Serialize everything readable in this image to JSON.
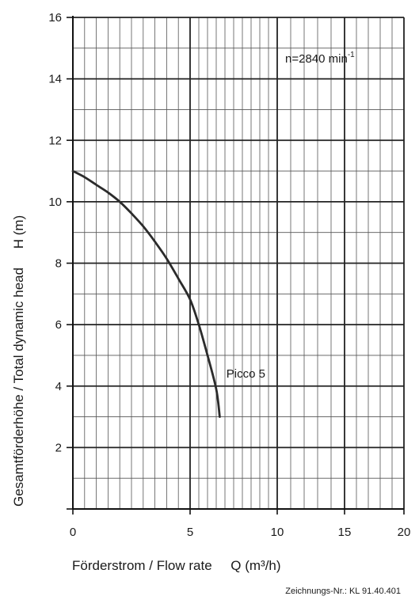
{
  "chart_data": {
    "type": "line",
    "xlabel": "Förderstrom / Flow rate     Q (m³/h)",
    "ylabel": "Gesamtförderhöhe / Total dynamic head     H (m)",
    "xlim": [
      0,
      20
    ],
    "ylim": [
      0,
      16
    ],
    "x_scale": "piecewise-linear",
    "x_breakpoints": [
      0,
      5,
      10,
      20
    ],
    "x_ticks": [
      0,
      5,
      10,
      15,
      20
    ],
    "y_ticks": [
      2,
      4,
      6,
      8,
      10,
      12,
      14,
      16
    ],
    "x_tick_labels": [
      "0",
      "5",
      "10",
      "15",
      "20"
    ],
    "y_tick_labels": [
      "2",
      "4",
      "6",
      "8",
      "10",
      "12",
      "14",
      "16"
    ],
    "x_minor_ticks": [
      0.5,
      1,
      1.5,
      2,
      2.5,
      3,
      3.5,
      4,
      4.5,
      5.5,
      6,
      6.5,
      7,
      7.5,
      8,
      8.5,
      9,
      9.5,
      11,
      12,
      13,
      14,
      15,
      16,
      17,
      18,
      19
    ],
    "y_minor_ticks": [
      1,
      2,
      3,
      4,
      5,
      6,
      7,
      8,
      9,
      10,
      11,
      12,
      13,
      14,
      15
    ],
    "grid": true,
    "annotation_speed": {
      "main": "n=2840 min",
      "superscript": "-1"
    },
    "series": [
      {
        "name": "Picco 5",
        "x": [
          0,
          0.5,
          1,
          1.5,
          2,
          2.5,
          3,
          3.5,
          4,
          4.5,
          5,
          5.5,
          6,
          6.5,
          6.7
        ],
        "y": [
          11.0,
          10.8,
          10.55,
          10.3,
          10.0,
          9.62,
          9.2,
          8.7,
          8.15,
          7.5,
          6.82,
          6.0,
          5.0,
          3.9,
          3.0
        ]
      }
    ],
    "series_label_position": {
      "x": 6.9,
      "y": 4.4
    },
    "drawing_number": "Zeichnungs-Nr.: KL 91.40.401"
  }
}
